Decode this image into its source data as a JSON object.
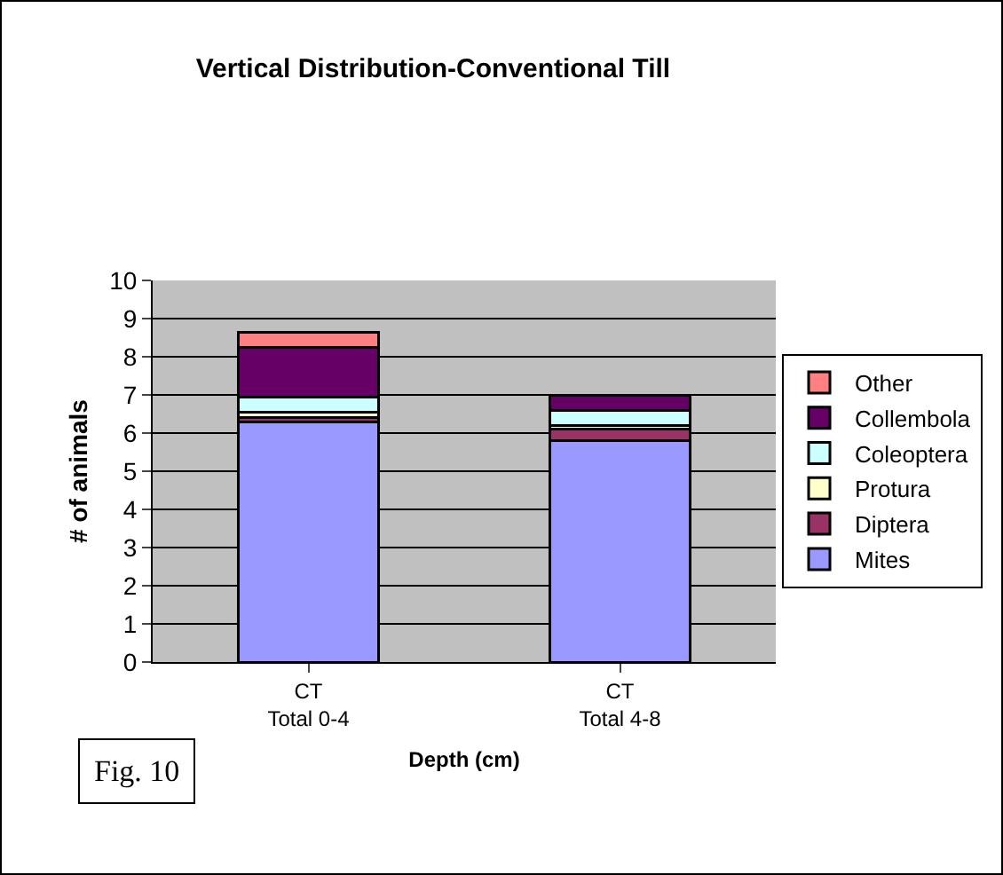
{
  "chart_data": {
    "type": "bar",
    "stacked": true,
    "title": "Vertical Distribution-Conventional Till",
    "xlabel": "Depth (cm)",
    "ylabel": "# of animals",
    "categories": [
      "CT\nTotal 0-4",
      "CT\nTotal 4-8"
    ],
    "series": [
      {
        "name": "Mites",
        "color": "#9999ff",
        "values": [
          6.3,
          5.8
        ]
      },
      {
        "name": "Diptera",
        "color": "#993366",
        "values": [
          0.1,
          0.3
        ]
      },
      {
        "name": "Protura",
        "color": "#ffffcc",
        "values": [
          0.15,
          0.1
        ]
      },
      {
        "name": "Coleoptera",
        "color": "#ccffff",
        "values": [
          0.4,
          0.4
        ]
      },
      {
        "name": "Collembola",
        "color": "#660066",
        "values": [
          1.3,
          0.4
        ]
      },
      {
        "name": "Other",
        "color": "#ff8080",
        "values": [
          0.4,
          null
        ]
      }
    ],
    "ylim": [
      0,
      10
    ],
    "yticks": [
      0,
      1,
      2,
      3,
      4,
      5,
      6,
      7,
      8,
      9,
      10
    ],
    "grid": "y",
    "legend": "right",
    "annotations": [
      "Fig. 10"
    ]
  }
}
